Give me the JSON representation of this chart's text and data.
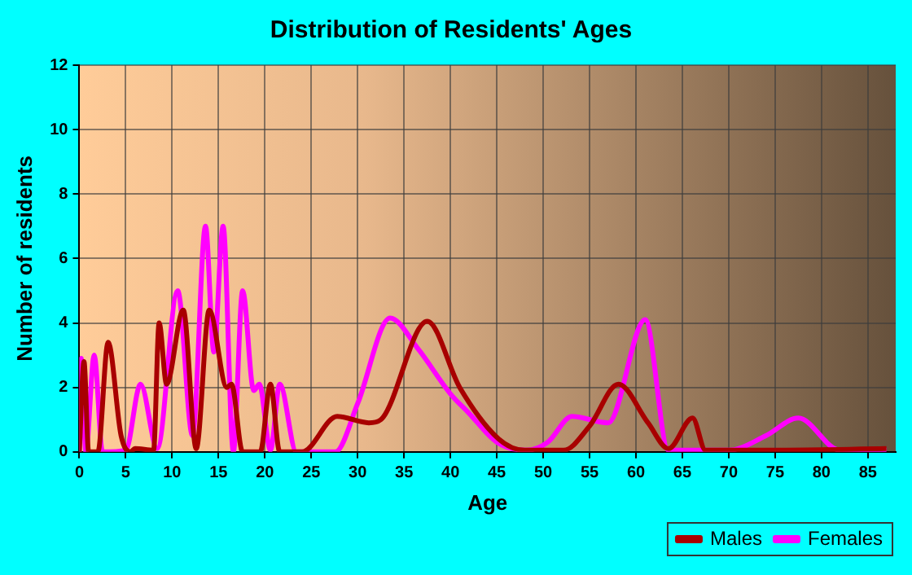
{
  "chart_data": {
    "type": "line",
    "title": "Distribution of Residents' Ages",
    "xlabel": "Age",
    "ylabel": "Number of residents",
    "xlim": [
      0,
      88
    ],
    "xticks": [
      0,
      5,
      10,
      15,
      20,
      25,
      30,
      35,
      40,
      45,
      50,
      55,
      60,
      65,
      70,
      75,
      80,
      85
    ],
    "ylim": [
      0,
      12
    ],
    "yticks": [
      0,
      2,
      4,
      6,
      8,
      10,
      12
    ],
    "grid": true,
    "legend": "bottom right",
    "marker": "none",
    "line_style": "solid",
    "series": [
      {
        "name": "Males",
        "color": "#a80000",
        "x": [
          0,
          0.5,
          1,
          2,
          3.1,
          4.5,
          5.5,
          6,
          8,
          8.6,
          9.4,
          11.2,
          12.6,
          14,
          15.9,
          16.4,
          17.6,
          19.5,
          20.6,
          21.6,
          24,
          27.8,
          31.2,
          32.5,
          37.5,
          41,
          45.2,
          48,
          52.2,
          55,
          58.1,
          61.3,
          63.5,
          66.1,
          67.5,
          75,
          87
        ],
        "values": [
          0,
          2.8,
          0,
          0,
          3.4,
          0.5,
          0,
          0.1,
          0.05,
          4,
          2.1,
          4.4,
          0.1,
          4.4,
          2,
          2.1,
          0,
          0,
          2.1,
          0,
          0,
          1.1,
          0.9,
          1,
          4.05,
          2,
          0.4,
          0.05,
          0.05,
          0.8,
          2.1,
          0.9,
          0.1,
          1.05,
          0.05,
          0.05,
          0.1
        ]
      },
      {
        "name": "Females",
        "color": "#ff00ff",
        "x": [
          0,
          0.2,
          0.7,
          1.6,
          2.5,
          5,
          6.6,
          8.4,
          10.6,
          12.2,
          13.6,
          14.5,
          15.5,
          16.6,
          17.6,
          18.8,
          19.4,
          20.6,
          21.6,
          23.4,
          27.6,
          30,
          33.5,
          36.5,
          40,
          42,
          45,
          48.2,
          50.5,
          53.1,
          57,
          61,
          63.5,
          70,
          74,
          77.5,
          82,
          87
        ],
        "values": [
          0,
          2.9,
          0,
          3,
          0,
          0.05,
          2.1,
          0.1,
          5,
          0.5,
          7,
          3.1,
          7,
          0,
          5,
          1.9,
          2.1,
          0.05,
          2.1,
          0,
          0,
          1.5,
          4.15,
          3.2,
          1.8,
          1.2,
          0.3,
          0.05,
          0.3,
          1.1,
          0.9,
          4.1,
          0.05,
          0.05,
          0.5,
          1.05,
          0.05,
          0.05
        ]
      }
    ]
  }
}
